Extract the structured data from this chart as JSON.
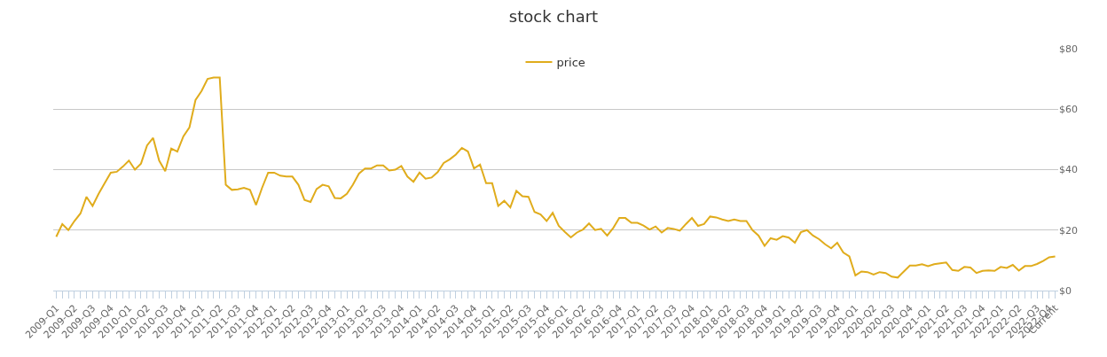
{
  "chart_data": {
    "type": "line",
    "title": "stock chart",
    "legend": "top",
    "grid": "y",
    "marker": "none",
    "line_style": "solid",
    "ylim": [
      0,
      80
    ],
    "yticks": [
      {
        "value": 0,
        "label": "$0"
      },
      {
        "value": 20,
        "label": "$20"
      },
      {
        "value": 40,
        "label": "$40"
      },
      {
        "value": 60,
        "label": "$60"
      },
      {
        "value": 80,
        "label": "$80"
      }
    ],
    "categories": [
      "2009-Q1",
      null,
      null,
      "2009-Q2",
      null,
      null,
      "2009-Q3",
      null,
      null,
      "2009-Q4",
      null,
      null,
      "2010-Q1",
      null,
      null,
      "2010-Q2",
      null,
      null,
      "2010-Q3",
      null,
      null,
      "2010-Q4",
      null,
      null,
      "2011-Q1",
      null,
      null,
      "2011-Q2",
      null,
      null,
      "2011-Q3",
      null,
      null,
      "2011-Q4",
      null,
      null,
      "2012-Q1",
      null,
      null,
      "2012-Q2",
      null,
      null,
      "2012-Q3",
      null,
      null,
      "2012-Q4",
      null,
      null,
      "2013-Q1",
      null,
      null,
      "2013-Q2",
      null,
      null,
      "2013-Q3",
      null,
      null,
      "2013-Q4",
      null,
      null,
      "2014-Q1",
      null,
      null,
      "2014-Q2",
      null,
      null,
      "2014-Q3",
      null,
      null,
      "2014-Q4",
      null,
      null,
      "2015-Q1",
      null,
      null,
      "2015-Q2",
      null,
      null,
      "2015-Q3",
      null,
      null,
      "2015-Q4",
      null,
      null,
      "2016-Q1",
      null,
      null,
      "2016-Q2",
      null,
      null,
      "2016-Q3",
      null,
      null,
      "2016-Q4",
      null,
      null,
      "2017-Q1",
      null,
      null,
      "2017-Q2",
      null,
      null,
      "2017-Q3",
      null,
      null,
      "2017-Q4",
      null,
      null,
      "2018-Q1",
      null,
      null,
      "2018-Q2",
      null,
      null,
      "2018-Q3",
      null,
      null,
      "2018-Q4",
      null,
      null,
      "2019-Q1",
      null,
      null,
      "2019-Q2",
      null,
      null,
      "2019-Q3",
      null,
      null,
      "2019-Q4",
      null,
      null,
      "2020-Q1",
      null,
      null,
      "2020-Q2",
      null,
      null,
      "2020-Q3",
      null,
      null,
      "2020-Q4",
      null,
      null,
      "2021-Q1",
      null,
      null,
      "2021-Q2",
      null,
      null,
      "2021-Q3",
      null,
      null,
      "2021-Q4",
      null,
      null,
      "2022-Q1",
      null,
      null,
      "2022-Q2",
      null,
      null,
      "2022-Q3",
      null,
      "2022-Q4",
      "Current"
    ],
    "series": [
      {
        "name": "price",
        "color": "#e0ac1c",
        "values": [
          17.8,
          22,
          20,
          23,
          25.5,
          31,
          28,
          32,
          35.5,
          39,
          39.3,
          41,
          43,
          40,
          42,
          48,
          50.5,
          43,
          39.5,
          47,
          46,
          51,
          54,
          63,
          66,
          70,
          70.5,
          70.5,
          35,
          33.3,
          33.5,
          34,
          33.3,
          28.3,
          34,
          39,
          39,
          38,
          37.7,
          37.7,
          35,
          30,
          29.3,
          33.6,
          35,
          34.5,
          30.6,
          30.5,
          32,
          35,
          38.7,
          40.4,
          40.4,
          41.4,
          41.4,
          39.7,
          40,
          41.2,
          37.7,
          36,
          39,
          37,
          37.4,
          39.2,
          42.2,
          43.4,
          45,
          47.2,
          46,
          40.4,
          41.7,
          35.5,
          35.5,
          28,
          29.7,
          27.5,
          33,
          31.2,
          31,
          26,
          25.2,
          23,
          25.7,
          21.4,
          19.4,
          17.6,
          19.2,
          20.2,
          22.2,
          20,
          20.4,
          18.2,
          20.7,
          24,
          24,
          22.4,
          22.4,
          21.5,
          20.2,
          21.2,
          19.2,
          20.7,
          20.4,
          19.8,
          22,
          24,
          21.4,
          22,
          24.5,
          24.2,
          23.5,
          23,
          23.5,
          23,
          23,
          20,
          18.2,
          14.8,
          17.3,
          16.8,
          18,
          17.5,
          15.8,
          19.3,
          20,
          18.2,
          17,
          15.3,
          14,
          15.8,
          12.6,
          11.3,
          5,
          6.3,
          6.1,
          5.3,
          6.1,
          5.8,
          4.6,
          4.3,
          6.3,
          8.3,
          8.3,
          8.7,
          8.1,
          8.7,
          9,
          9.3,
          6.8,
          6.5,
          7.8,
          7.6,
          5.8,
          6.5,
          6.7,
          6.5,
          7.8,
          7.5,
          8.5,
          6.6,
          8.1,
          8.1,
          8.8,
          9.8,
          11,
          11.3
        ]
      }
    ]
  }
}
